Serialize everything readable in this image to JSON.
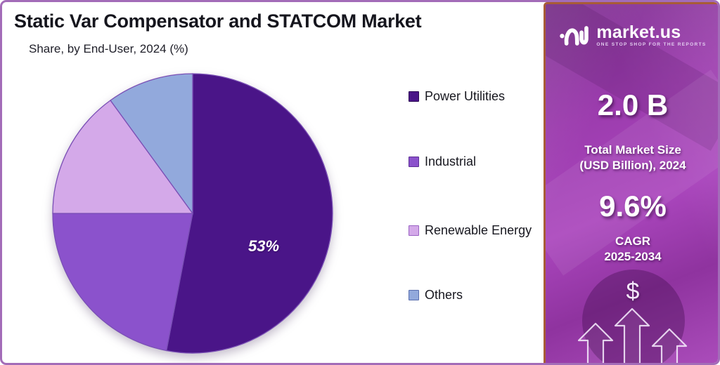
{
  "header": {
    "title": "Static Var Compensator and STATCOM Market",
    "subtitle": "Share, by End-User, 2024 (%)"
  },
  "chart_data": {
    "type": "pie",
    "title": "Static Var Compensator and STATCOM Market",
    "subtitle": "Share, by End-User, 2024 (%)",
    "labels": [
      "Power Utilities",
      "Industrial",
      "Renewable Energy",
      "Others"
    ],
    "values": [
      53,
      22,
      15,
      10
    ],
    "unit": "%",
    "colors": [
      "#4a1588",
      "#8b52cc",
      "#d4a9e9",
      "#92a9dc"
    ],
    "swatch_border_colors": [
      "#2d0a55",
      "#5c2f96",
      "#9a63c4",
      "#5a6faf"
    ],
    "slice_border_color": "#7a4fb5",
    "data_label": "53%",
    "data_label_slice": "Power Utilities",
    "start_angle_deg": 0,
    "direction": "clockwise",
    "legend_position": "right"
  },
  "panel": {
    "brand_name": "market.us",
    "brand_tagline": "ONE STOP SHOP FOR THE REPORTS",
    "market_size_value": "2.0 B",
    "market_size_label_line1": "Total Market Size",
    "market_size_label_line2": "(USD Billion), 2024",
    "cagr_value": "9.6%",
    "cagr_label_line1": "CAGR",
    "cagr_label_line2": "2025-2034",
    "dollar_symbol": "$"
  },
  "colors": {
    "frame_border": "#a36cb8",
    "panel_border": "#a85c36",
    "panel_background": "#9c3cae",
    "title_text": "#15151d",
    "stat_text": "#ffffff"
  }
}
